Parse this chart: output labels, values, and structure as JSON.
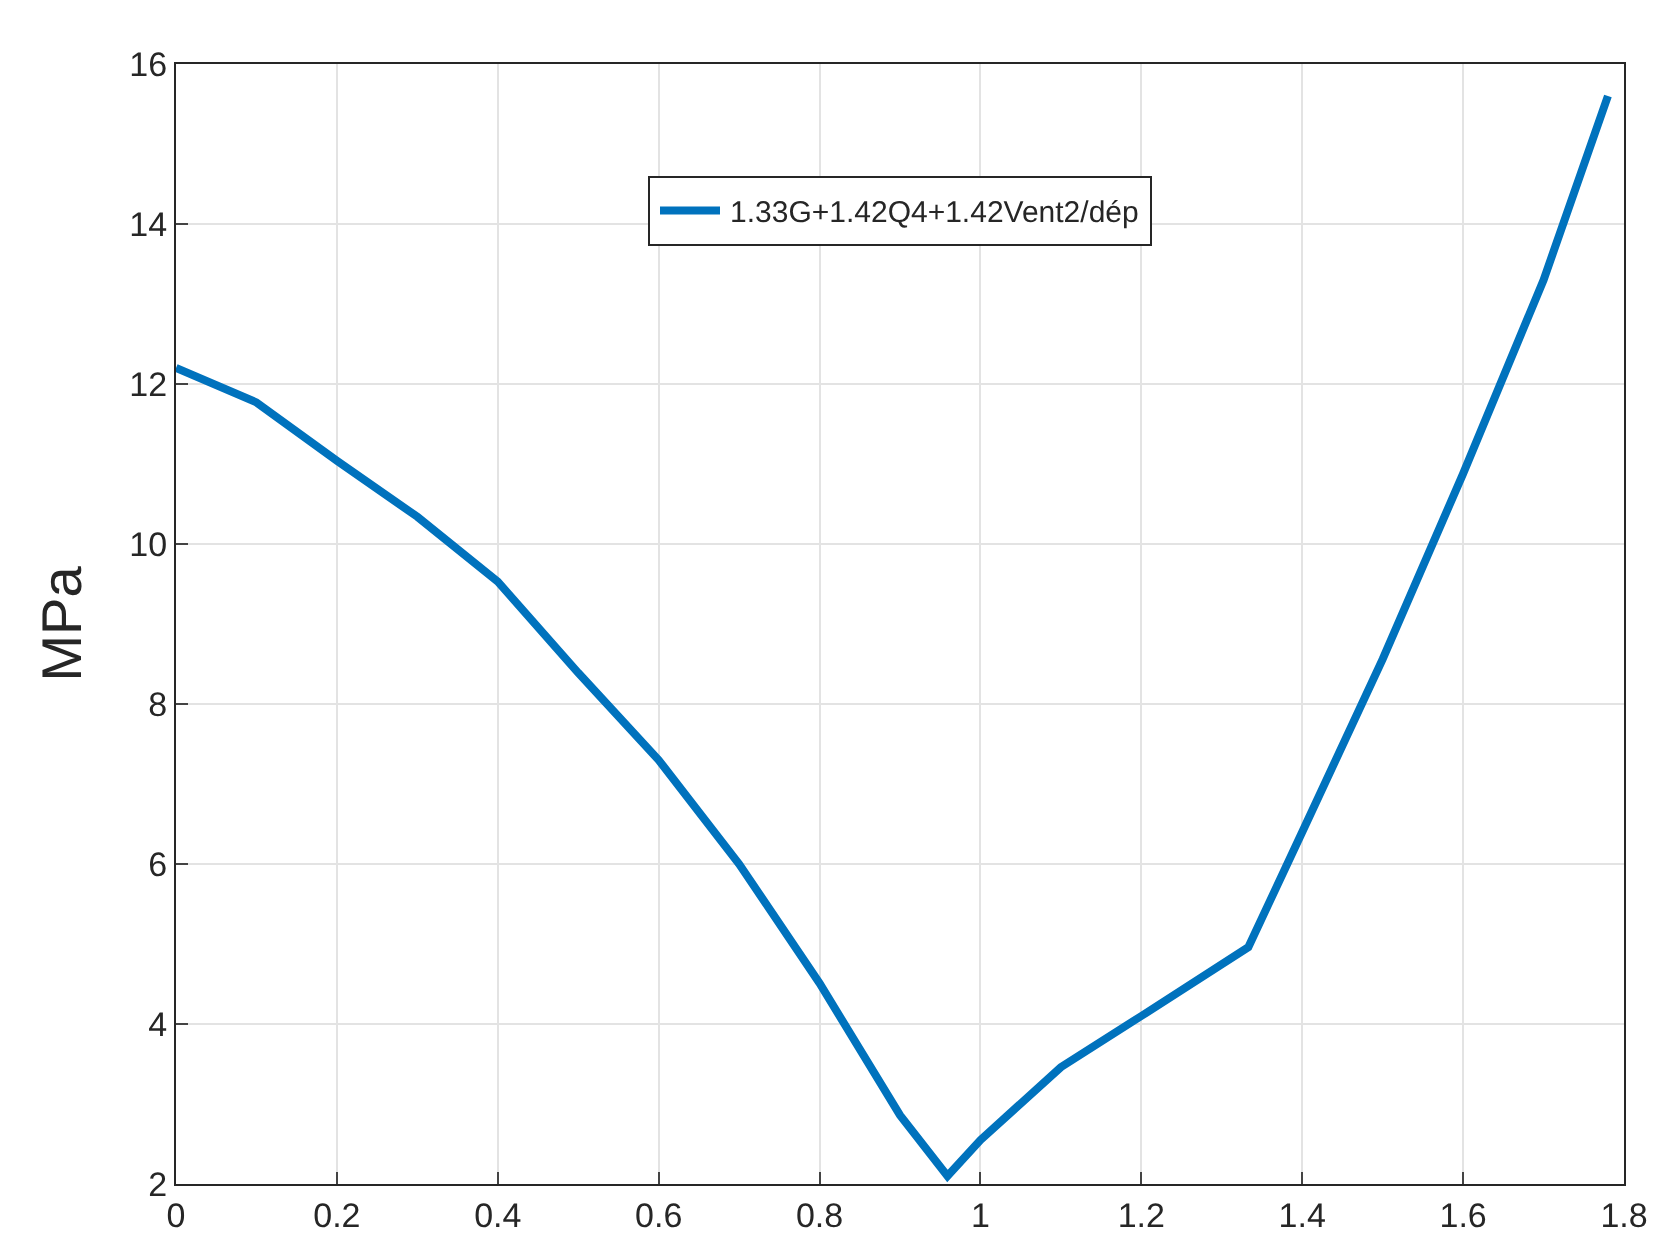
{
  "chart_data": {
    "type": "line",
    "ylabel": "MPa",
    "x": [
      0,
      0.1,
      0.2,
      0.3,
      0.4,
      0.5,
      0.6,
      0.7,
      0.8,
      0.9,
      0.959,
      1.0,
      1.1,
      1.2,
      1.333,
      1.4,
      1.5,
      1.6,
      1.7,
      1.78
    ],
    "series": [
      {
        "name": "1.33G+1.42Q4+1.42Vent2/dép",
        "color": "#0072bd",
        "values": [
          12.2,
          11.77,
          11.04,
          10.34,
          9.53,
          8.39,
          7.3,
          6.0,
          4.51,
          2.86,
          2.1,
          2.55,
          3.46,
          4.1,
          4.96,
          6.4,
          8.56,
          10.88,
          13.3,
          15.6
        ]
      }
    ],
    "xlim": [
      0,
      1.8
    ],
    "xticks": [
      0,
      0.2,
      0.4,
      0.6,
      0.8,
      1,
      1.2,
      1.4,
      1.6,
      1.8
    ],
    "ylim": [
      2,
      16
    ],
    "yticks": [
      2,
      4,
      6,
      8,
      10,
      12,
      14,
      16
    ],
    "grid": true,
    "legend": "top",
    "line_style": "solid",
    "marker": "none"
  }
}
